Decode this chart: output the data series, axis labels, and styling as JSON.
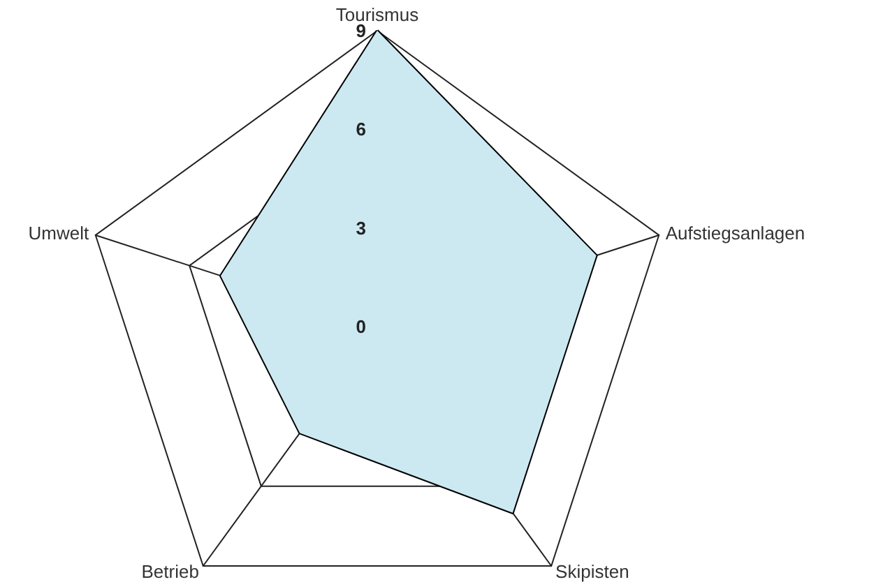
{
  "chart_data": {
    "type": "radar",
    "categories": [
      "Tourismus",
      "Aufstiegsanlagen",
      "Skipisten",
      "Betrieb",
      "Umwelt"
    ],
    "series": [
      {
        "color": "#cce9f2",
        "values": [
          9,
          7,
          7,
          4,
          5
        ]
      }
    ],
    "ylim": [
      0,
      9
    ],
    "yticks": [
      0,
      3,
      6,
      9
    ]
  }
}
